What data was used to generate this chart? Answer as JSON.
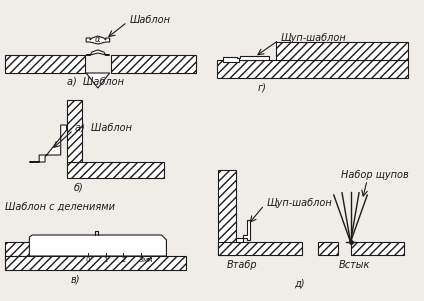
{
  "bg_color": "#f0ede8",
  "line_color": "#1a1a1a",
  "labels": {
    "shablon_top": "Шаблон",
    "a_shablon": "а)  Шаблон",
    "b_label": "б)",
    "shablon_deleniyami": "Шаблон с делениями",
    "v_label": "в)",
    "shup_shablon_top": "Щуп-шаблон",
    "g_label": "г)",
    "shup_shablon_bot": "Щуп-шаблон",
    "vtabr": "Втабр",
    "nabor_shupov": "Набор щупов",
    "vstyk": "Встык",
    "d_label": "д)"
  },
  "figsize": [
    4.24,
    3.01
  ],
  "dpi": 100
}
